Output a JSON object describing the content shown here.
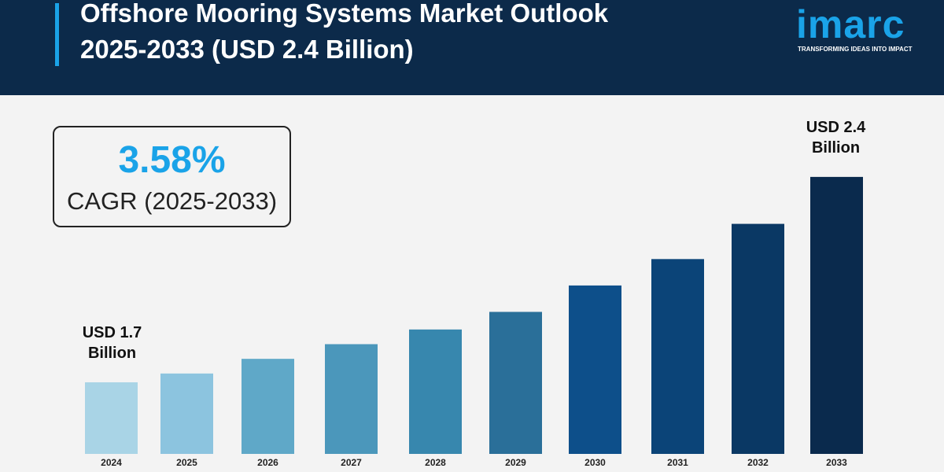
{
  "header": {
    "title_line1": "Offshore Mooring Systems Market Outlook",
    "title_line2": "2025-2033 (USD 2.4 Billion)",
    "logo_text": "imarc",
    "logo_tagline": "TRANSFORMING IDEAS INTO IMPACT"
  },
  "cagr": {
    "value": "3.58%",
    "label": "CAGR (2025-2033)"
  },
  "annotations": {
    "start_line1": "USD 1.7",
    "start_line2": "Billion",
    "end_line1": "USD 2.4",
    "end_line2": "Billion"
  },
  "colors": {
    "header_bg": "#0c2a4a",
    "accent": "#1aa3e8",
    "background": "#f3f3f3"
  },
  "chart_data": {
    "type": "bar",
    "title": "Offshore Mooring Systems Market Outlook 2025-2033 (USD 2.4 Billion)",
    "categories": [
      "2024",
      "2025",
      "2026",
      "2027",
      "2028",
      "2029",
      "2030",
      "2031",
      "2032",
      "2033"
    ],
    "values": [
      1.7,
      1.73,
      1.78,
      1.83,
      1.88,
      1.94,
      2.03,
      2.12,
      2.24,
      2.4
    ],
    "unit": "USD Billion",
    "value_labels_printed": {
      "2024": "USD 1.7 Billion",
      "2033": "USD 2.4 Billion"
    },
    "bar_colors": [
      "#a9d4e6",
      "#8cc4df",
      "#5fa8c8",
      "#4b97bb",
      "#3787ae",
      "#2a6f99",
      "#0d4f8a",
      "#0b4478",
      "#0a3864",
      "#0a2a4d"
    ],
    "ylim": [
      1.456,
      2.45
    ],
    "grid": false,
    "legend": "none"
  }
}
